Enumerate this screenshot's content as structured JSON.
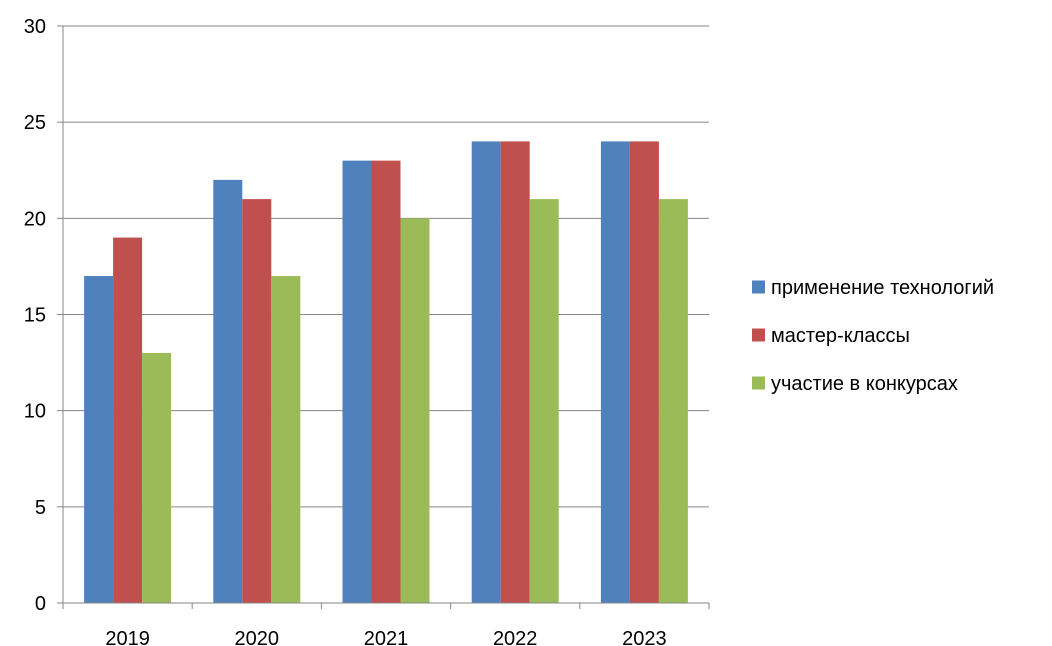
{
  "chart_data": {
    "type": "bar",
    "title": "",
    "xlabel": "",
    "ylabel": "",
    "categories": [
      "2019",
      "2020",
      "2021",
      "2022",
      "2023"
    ],
    "series": [
      {
        "name": "применение технологий",
        "color": "#4F81BD",
        "values": [
          17,
          22,
          23,
          24,
          24
        ]
      },
      {
        "name": "мастер-классы",
        "color": "#C0504D",
        "values": [
          19,
          21,
          23,
          24,
          24
        ]
      },
      {
        "name": "участие в конкурсах",
        "color": "#9BBB59",
        "values": [
          13,
          17,
          20,
          21,
          21
        ]
      }
    ],
    "ylim": [
      0,
      30
    ],
    "yticks": [
      0,
      5,
      10,
      15,
      20,
      25,
      30
    ],
    "grid": true,
    "legend_position": "right"
  }
}
